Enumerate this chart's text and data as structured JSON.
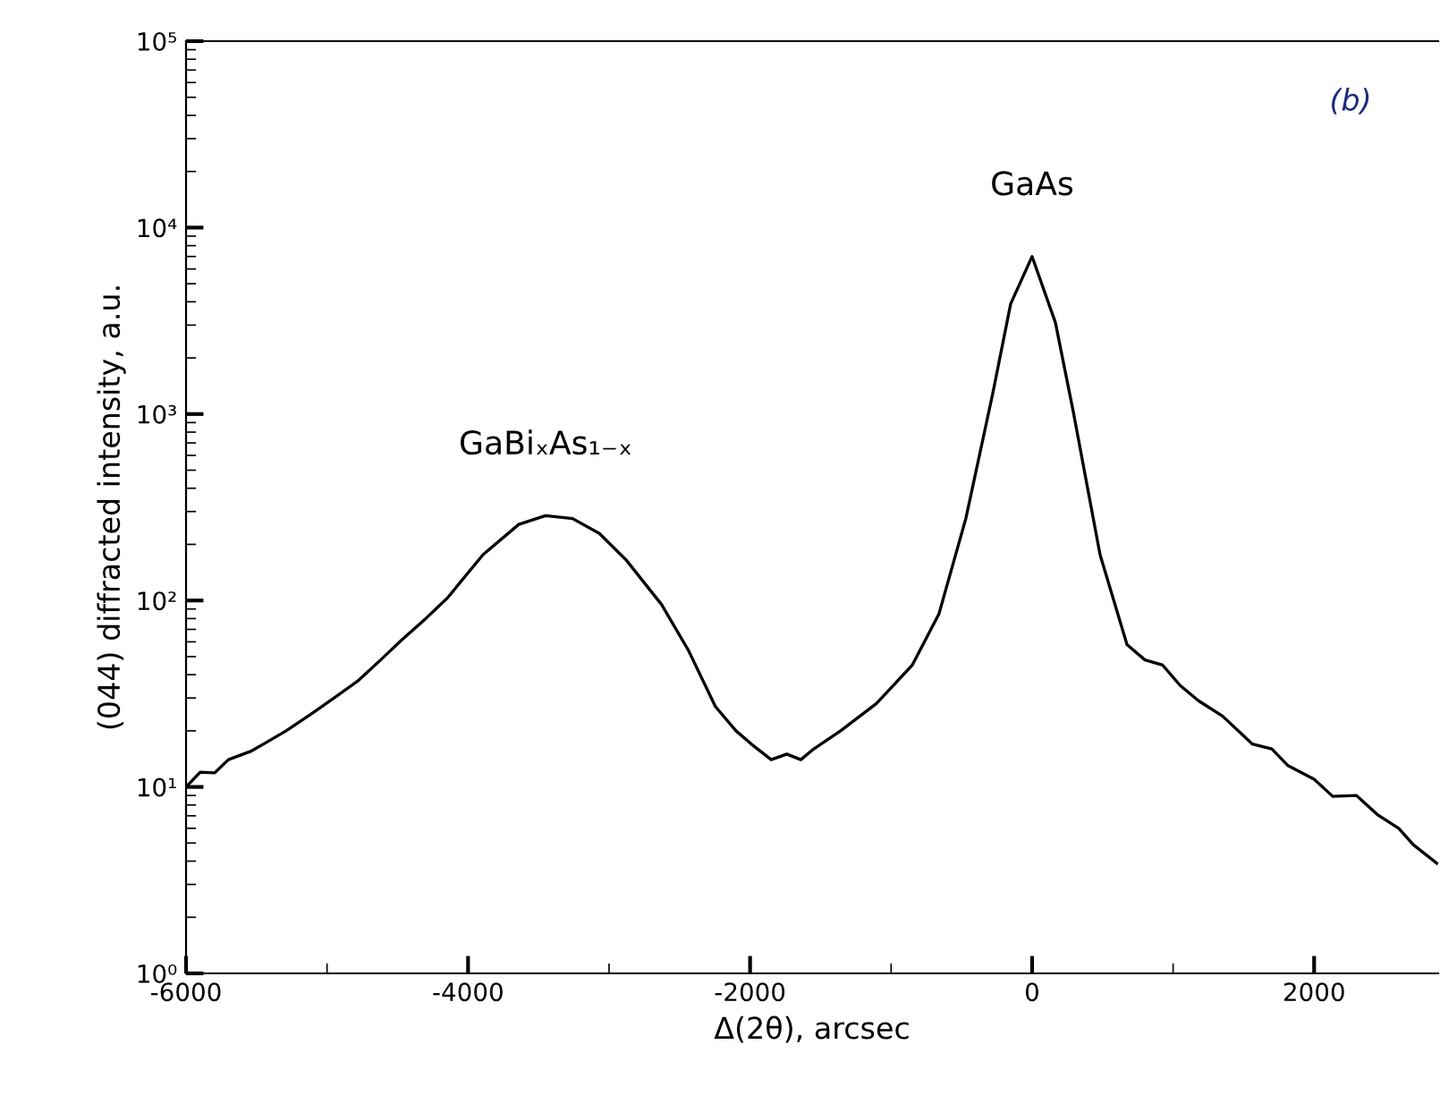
{
  "chart_data": {
    "type": "line",
    "xlabel": "Δ(2θ), arcsec",
    "ylabel": "(044) diffracted intensity, a.u.",
    "x": [
      -6000,
      -5900,
      -5797,
      -5700,
      -5543,
      -5450,
      -5290,
      -5099,
      -4950,
      -4782,
      -4620,
      -4465,
      -4300,
      -4147,
      -3894,
      -3640,
      -3450,
      -3259,
      -3069,
      -2879,
      -2627,
      -2437,
      -2246,
      -2100,
      -1992,
      -1850,
      -1739,
      -1640,
      -1548,
      -1358,
      -1104,
      -850,
      -660,
      -470,
      -279,
      -152,
      0,
      165,
      292,
      482,
      673,
      800,
      926,
      1050,
      1180,
      1350,
      1561,
      1700,
      1815,
      2000,
      2132,
      2300,
      2449,
      2600,
      2703,
      2870
    ],
    "series": [
      {
        "color": "#000000",
        "values": [
          10,
          12,
          11.9,
          14,
          15.5,
          17,
          20,
          25,
          30,
          37,
          48,
          62,
          80,
          103,
          176,
          256,
          285,
          275,
          229,
          165,
          95,
          54,
          27,
          20,
          17,
          14,
          15,
          14,
          16,
          20,
          28,
          45,
          85,
          275,
          1290,
          3900,
          7000,
          3100,
          1030,
          176,
          58,
          48,
          45,
          35,
          29,
          24,
          17,
          16,
          13,
          11,
          8.9,
          9,
          7.1,
          6,
          4.9,
          3.9
        ]
      }
    ],
    "annotations": [
      {
        "text": "GaAs",
        "x": 0,
        "y": 7000
      },
      {
        "text": "GaBiₓAs₁₋ₓ",
        "x": -3450,
        "y": 285
      },
      "(b)"
    ],
    "log": "y",
    "xlim": [
      -6000,
      2880
    ],
    "xticks": [
      {
        "value": -6000,
        "label": "-6000"
      },
      {
        "value": -4000,
        "label": "-4000"
      },
      {
        "value": -2000,
        "label": "-2000"
      },
      {
        "value": 0,
        "label": "0"
      },
      {
        "value": 2000,
        "label": "2000"
      }
    ],
    "ylim": [
      1,
      100000
    ],
    "yticks": [
      {
        "value": 1,
        "label": "10⁰"
      },
      {
        "value": 10,
        "label": "10¹"
      },
      {
        "value": 100,
        "label": "10²"
      },
      {
        "value": 1000,
        "label": "10³"
      },
      {
        "value": 10000,
        "label": "10⁴"
      },
      {
        "value": 100000,
        "label": "10⁵"
      }
    ],
    "grid": false,
    "legend": false,
    "marker": "none",
    "line_style": "solid"
  }
}
